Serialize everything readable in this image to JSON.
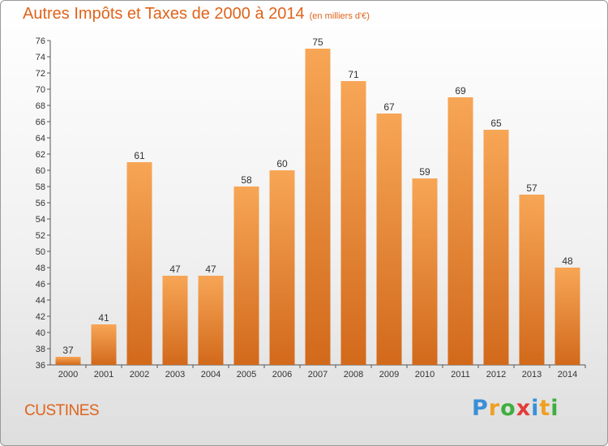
{
  "title": "Autres Impôts et Taxes de 2000 à 2014",
  "unit": "(en milliers d'€)",
  "city": "CUSTINES",
  "logo": {
    "letters": [
      "P",
      "r",
      "o",
      "x",
      "i",
      "t",
      "i"
    ],
    "colors": [
      "#3a8fd6",
      "#f0a020",
      "#3fae3f",
      "#e23b3b",
      "#3a8fd6",
      "#f0a020",
      "#3fae3f"
    ]
  },
  "colors": {
    "bar_top": "#f7a656",
    "bar_bottom": "#d2691b",
    "text": "#e0631a"
  },
  "chart_data": {
    "type": "bar",
    "title": "Autres Impôts et Taxes de 2000 à 2014",
    "xlabel": "",
    "ylabel": "",
    "categories": [
      "2000",
      "2001",
      "2002",
      "2003",
      "2004",
      "2005",
      "2006",
      "2007",
      "2008",
      "2009",
      "2010",
      "2011",
      "2012",
      "2013",
      "2014"
    ],
    "values": [
      37,
      41,
      61,
      47,
      47,
      58,
      60,
      75,
      71,
      67,
      59,
      69,
      65,
      57,
      48
    ],
    "ylim": [
      36,
      76
    ],
    "yticks": [
      36,
      38,
      40,
      42,
      44,
      46,
      48,
      50,
      52,
      54,
      56,
      58,
      60,
      62,
      64,
      66,
      68,
      70,
      72,
      74,
      76
    ],
    "grid": false
  }
}
